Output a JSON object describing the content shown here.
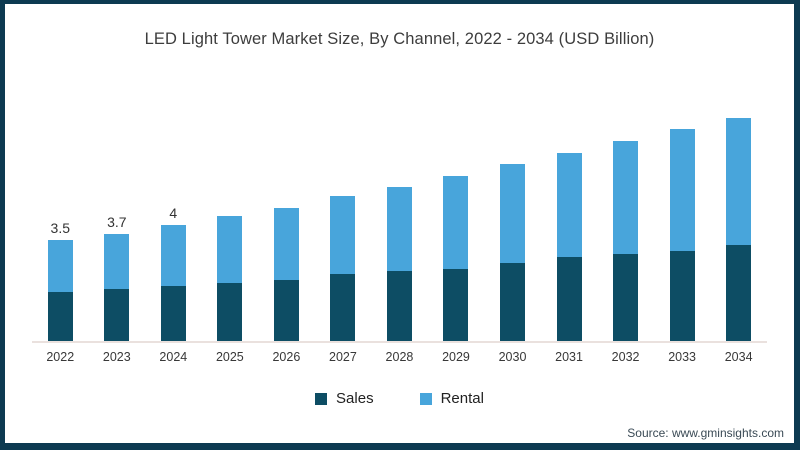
{
  "page": {
    "title": "LED Light Tower Market Size, By Channel, 2022 - 2034 (USD Billion)"
  },
  "chart_data": {
    "type": "bar",
    "stacked": true,
    "title": "LED Light Tower Market Size, By Channel, 2022 - 2034 (USD Billion)",
    "categories": [
      "2022",
      "2023",
      "2024",
      "2025",
      "2026",
      "2027",
      "2028",
      "2029",
      "2030",
      "2031",
      "2032",
      "2033",
      "2034"
    ],
    "series": [
      {
        "name": "Sales",
        "color": "#0d4d64",
        "values": [
          1.7,
          1.8,
          1.9,
          2.0,
          2.1,
          2.3,
          2.4,
          2.5,
          2.7,
          2.9,
          3.0,
          3.1,
          3.3
        ]
      },
      {
        "name": "Rental",
        "color": "#48a5db",
        "values": [
          1.8,
          1.9,
          2.1,
          2.3,
          2.5,
          2.7,
          2.9,
          3.2,
          3.4,
          3.6,
          3.9,
          4.2,
          4.4
        ]
      }
    ],
    "totals": [
      3.5,
      3.7,
      4.0,
      4.3,
      4.6,
      5.0,
      5.3,
      5.7,
      6.1,
      6.5,
      6.9,
      7.3,
      7.7
    ],
    "data_labels": [
      "3.5",
      "3.7",
      "4",
      "",
      "",
      "",
      "",
      "",
      "",
      "",
      "",
      "",
      ""
    ],
    "xlabel": "",
    "ylabel": "",
    "ylim": [
      0,
      8
    ],
    "grid": false,
    "legend_position": "bottom",
    "value_unit": "USD Billion"
  },
  "legend": {
    "items": [
      {
        "label": "Sales",
        "color": "#0d4d64"
      },
      {
        "label": "Rental",
        "color": "#48a5db"
      }
    ]
  },
  "source": {
    "text": "Source: www.gminsights.com"
  },
  "colors": {
    "frame_border": "#0d3a51",
    "sales": "#0d4d64",
    "rental": "#48a5db",
    "baseline": "#eae1de",
    "title_text": "#3d3d3d"
  }
}
